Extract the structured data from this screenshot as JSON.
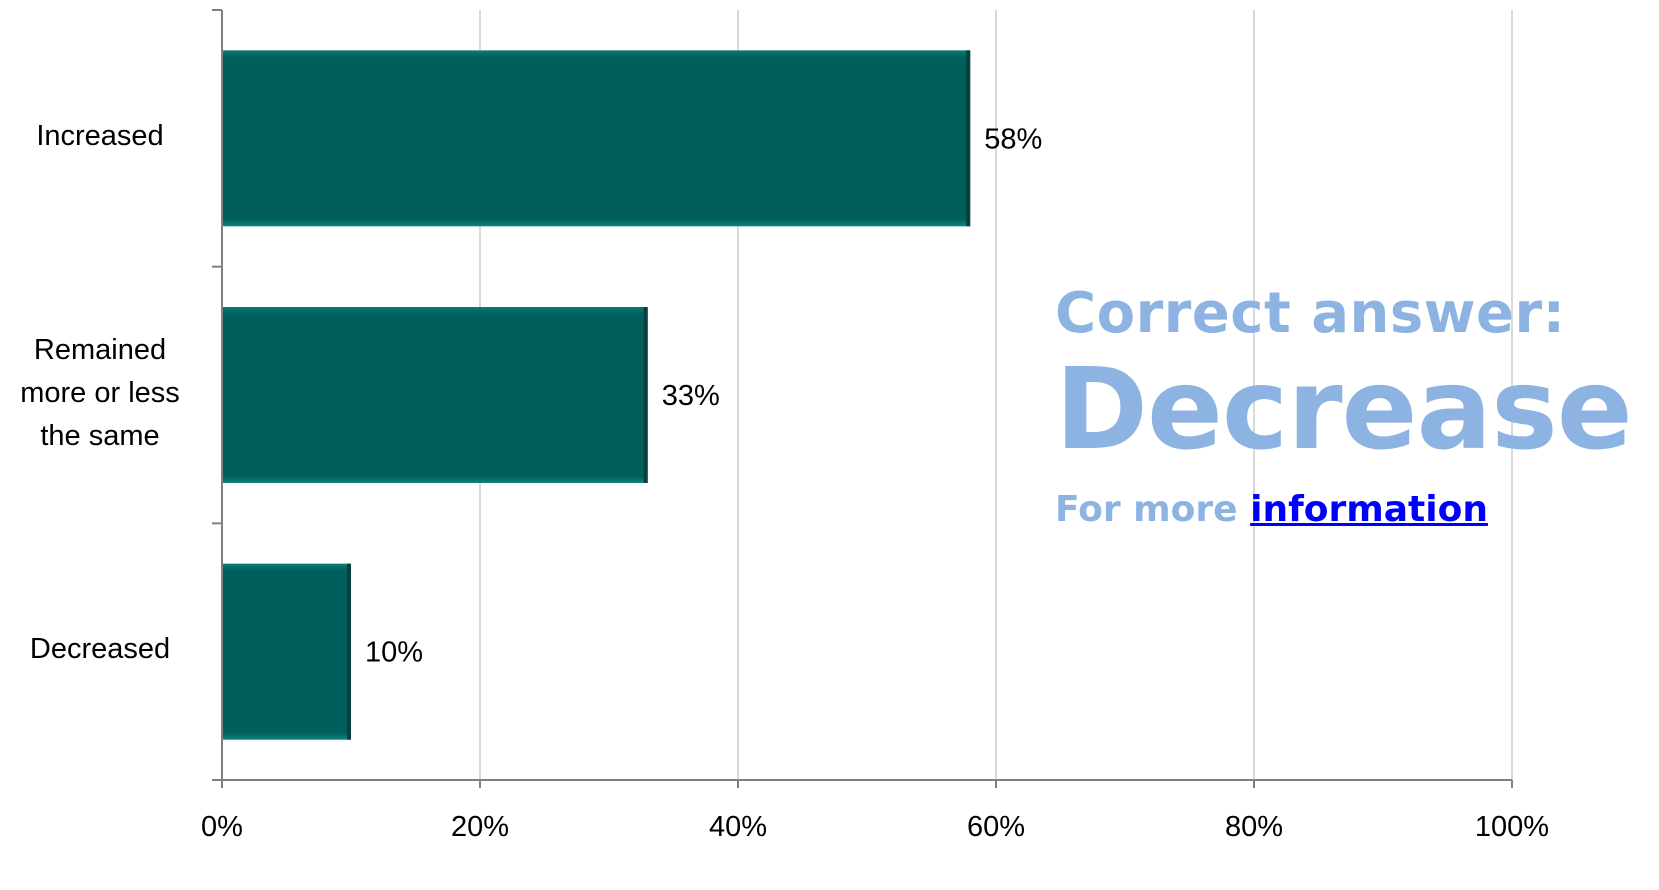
{
  "chart_data": {
    "type": "bar",
    "orientation": "horizontal",
    "categories": [
      "Increased",
      "Remained\nmore or less\nthe same",
      "Decreased"
    ],
    "values": [
      58,
      33,
      10
    ],
    "data_labels": [
      "58%",
      "33%",
      "10%"
    ],
    "x_ticks": [
      "0%",
      "20%",
      "40%",
      "60%",
      "80%",
      "100%"
    ],
    "xlim": [
      0,
      100
    ],
    "grid": "vertical",
    "title": "",
    "xlabel": "",
    "ylabel": ""
  },
  "colors": {
    "bar": "#005f5c",
    "gridline": "#d9d9d9",
    "axis": "#808080",
    "answer_text": "#8db3e2",
    "link": "#0000ff"
  },
  "answer": {
    "heading": "Correct answer:",
    "value": "Decrease",
    "more_prefix": "For more ",
    "link_text": "information"
  }
}
